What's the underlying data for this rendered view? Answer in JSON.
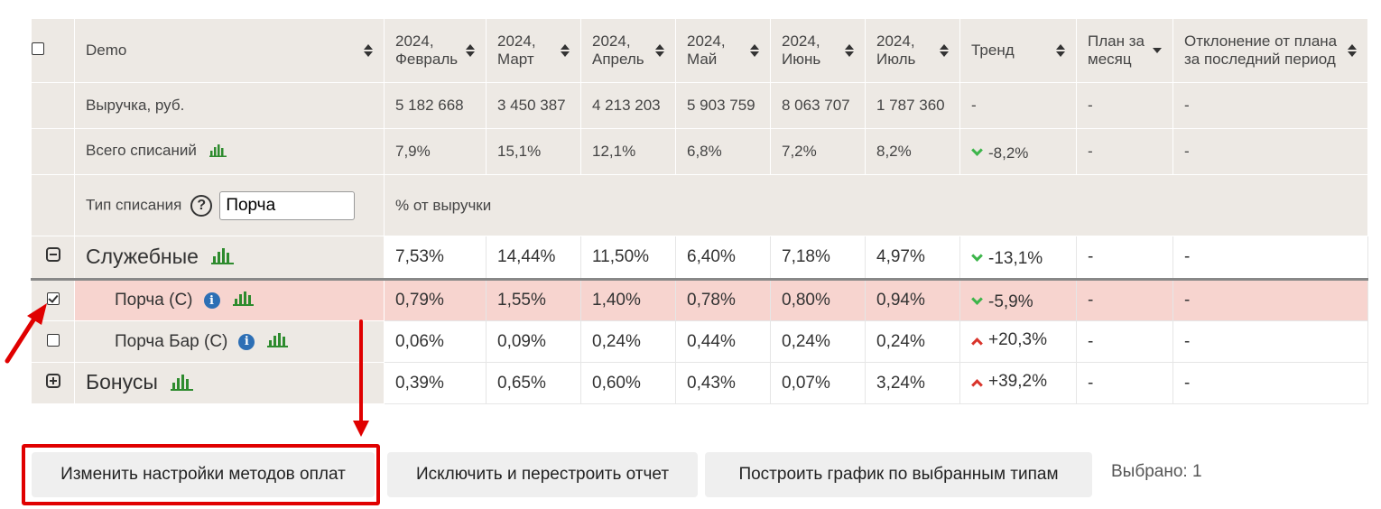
{
  "columns": {
    "name": "Demo",
    "months": [
      "2024,\nФевраль",
      "2024,\nМарт",
      "2024,\nАпрель",
      "2024,\nМай",
      "2024,\nИюнь",
      "2024,\nИюль"
    ],
    "trend": "Тренд",
    "plan": "План за\nмесяц",
    "deviation": "Отклонение от плана\nза последний период"
  },
  "revenue": {
    "label": "Выручка, руб.",
    "values": [
      "5 182 668",
      "3 450 387",
      "4 213 203",
      "5 903 759",
      "8 063 707",
      "1 787 360"
    ],
    "trend": "-",
    "plan": "-",
    "deviation": "-"
  },
  "writeoffs": {
    "label": "Всего списаний",
    "values": [
      "7,9%",
      "15,1%",
      "12,1%",
      "6,8%",
      "7,2%",
      "8,2%"
    ],
    "trend": "-8,2%",
    "trend_dir": "down",
    "plan": "-",
    "deviation": "-"
  },
  "type_filter": {
    "label": "Тип списания",
    "input_value": "Порча",
    "note": "% от выручки"
  },
  "rows": [
    {
      "name": "Служебные",
      "kind": "group",
      "values": [
        "7,53%",
        "14,44%",
        "11,50%",
        "6,40%",
        "7,18%",
        "4,97%"
      ],
      "trend": "-13,1%",
      "trend_dir": "down",
      "plan": "-",
      "deviation": "-"
    },
    {
      "name": "Порча (С)",
      "kind": "child",
      "checked": true,
      "values": [
        "0,79%",
        "1,55%",
        "1,40%",
        "0,78%",
        "0,80%",
        "0,94%"
      ],
      "trend": "-5,9%",
      "trend_dir": "down",
      "plan": "-",
      "deviation": "-"
    },
    {
      "name": "Порча Бар (С)",
      "kind": "child",
      "checked": false,
      "values": [
        "0,06%",
        "0,09%",
        "0,24%",
        "0,44%",
        "0,24%",
        "0,24%"
      ],
      "trend": "+20,3%",
      "trend_dir": "up",
      "plan": "-",
      "deviation": "-"
    },
    {
      "name": "Бонусы",
      "kind": "group",
      "values": [
        "0,39%",
        "0,65%",
        "0,60%",
        "0,43%",
        "0,07%",
        "3,24%"
      ],
      "trend": "+39,2%",
      "trend_dir": "up",
      "plan": "-",
      "deviation": "-"
    }
  ],
  "buttons": {
    "change_payment_settings": "Изменить настройки методов оплат",
    "exclude_rebuild": "Исключить и перестроить отчет",
    "build_chart": "Построить график по выбранным типам"
  },
  "selected_text": "Выбрано: 1",
  "colors": {
    "header_bg": "#ede9e4",
    "selected_row_bg": "#f7d4cf",
    "trend_down": "#3cb54a",
    "trend_up": "#d9342b",
    "annotation_red": "#e00000",
    "chart_icon_green": "#2e8b2e",
    "info_icon_blue": "#2d6fb5"
  },
  "icons": [
    "checkbox-icon",
    "sort-icon",
    "bar-chart-icon",
    "info-icon",
    "help-icon",
    "collapse-minus-icon",
    "expand-plus-icon",
    "trend-down-icon",
    "trend-up-icon",
    "annotation-arrow-icon"
  ]
}
